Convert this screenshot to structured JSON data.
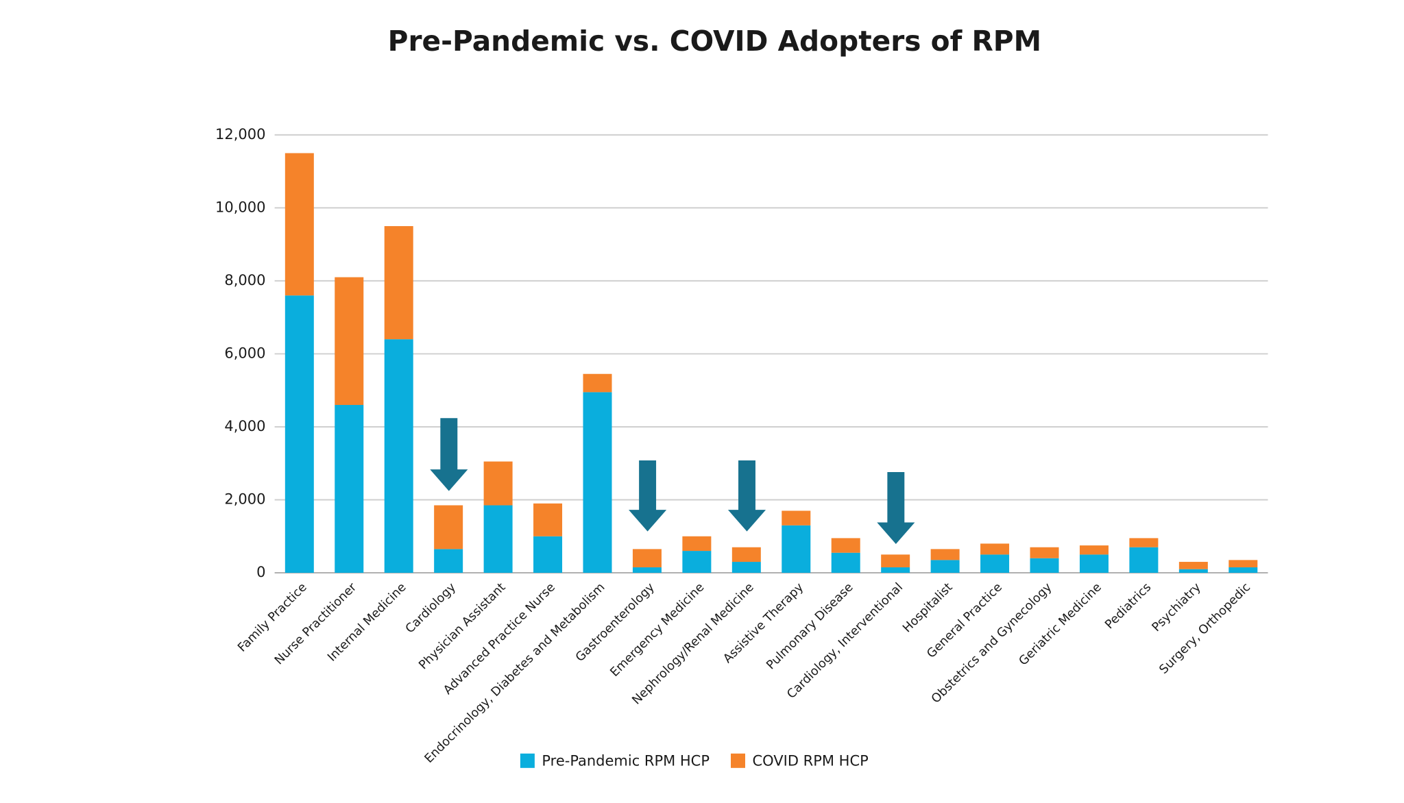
{
  "chart_data": {
    "type": "stacked_bar",
    "title": "Pre-Pandemic vs. COVID Adopters of RPM",
    "categories": [
      "Family Practice",
      "Nurse Practitioner",
      "Internal Medicine",
      "Cardiology",
      "Physician Assistant",
      "Advanced Practice Nurse",
      "Endocrinology, Diabetes and Metabolism",
      "Gastroenterology",
      "Emergency Medicine",
      "Nephrology/Renal Medicine",
      "Assistive Therapy",
      "Pulmonary Disease",
      "Cardiology, Interventional",
      "Hospitalist",
      "General Practice",
      "Obstetrics and Gynecology",
      "Geriatric Medicine",
      "Pediatrics",
      "Psychiatry",
      "Surgery, Orthopedic"
    ],
    "series": [
      {
        "name": "Pre-Pandemic RPM HCP",
        "color": "#0aaedd",
        "values": [
          7600,
          4600,
          6400,
          650,
          1850,
          1000,
          4950,
          150,
          600,
          300,
          1300,
          550,
          150,
          350,
          500,
          400,
          500,
          700,
          100,
          150
        ]
      },
      {
        "name": "COVID RPM HCP",
        "color": "#f5832a",
        "values": [
          3900,
          3500,
          3100,
          1200,
          1200,
          900,
          500,
          500,
          400,
          400,
          400,
          400,
          350,
          300,
          300,
          300,
          250,
          250,
          200,
          200
        ]
      }
    ],
    "ylim": [
      0,
      12000
    ],
    "yticks": [
      0,
      {
        "value": 2000,
        "label": "2,000"
      },
      {
        "value": 4000,
        "label": "4,000"
      },
      {
        "value": 6000,
        "label": "6,000"
      },
      {
        "value": 8000,
        "label": "8,000"
      },
      {
        "value": 10000,
        "label": "10,000"
      },
      {
        "value": 12000,
        "label": "12,000"
      }
    ],
    "grid": true,
    "legend": "bottom"
  }
}
